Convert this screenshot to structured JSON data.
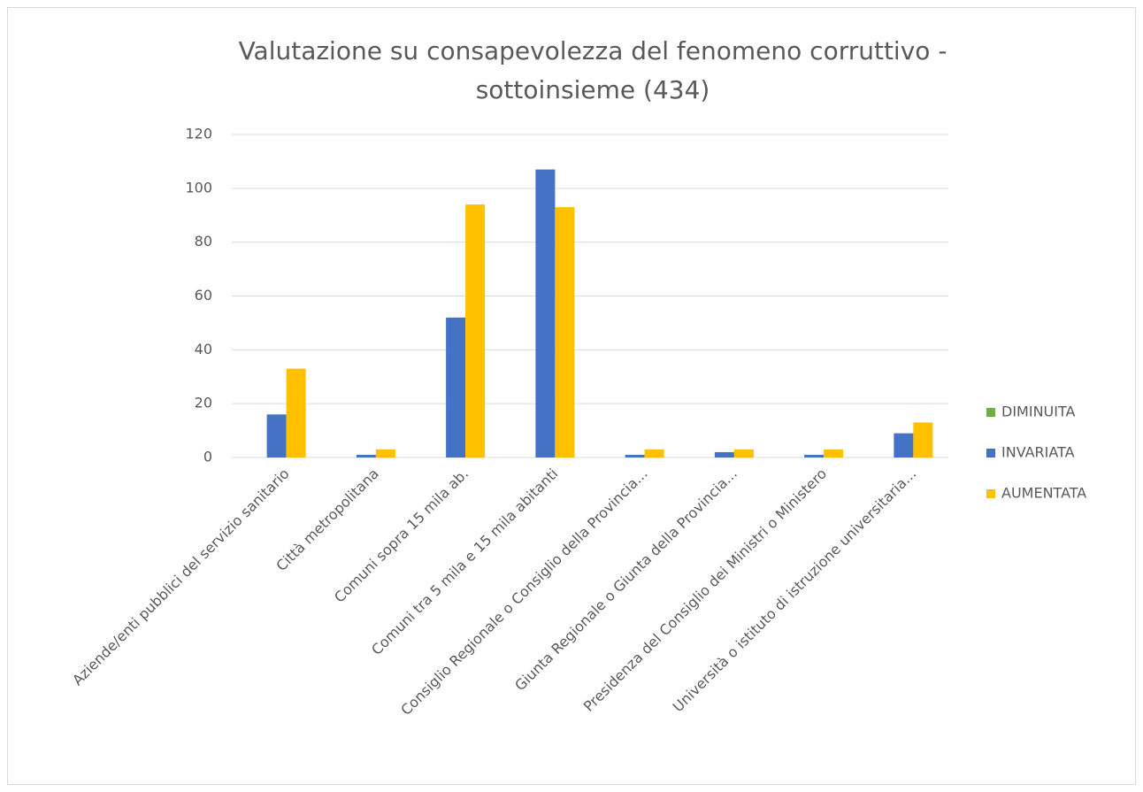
{
  "chart_data": {
    "type": "bar",
    "title": "Valutazione su consapevolezza del fenomeno corruttivo - sottoinsieme (434)",
    "categories": [
      "Aziende/enti pubblici del servizio sanitario",
      "Città metropolitana",
      "Comuni sopra 15 mila ab.",
      "Comuni tra 5 mila e 15 mila abitanti",
      "Consiglio Regionale o Consiglio della Provincia...",
      "Giunta Regionale o Giunta della Provincia...",
      "Presidenza del Consiglio dei Ministri o Ministero",
      "Università o istituto di istruzione universitaria..."
    ],
    "series": [
      {
        "name": "DIMINUITA",
        "color": "#70ad47",
        "values": [
          0,
          0,
          0,
          0,
          0,
          0,
          0,
          0
        ]
      },
      {
        "name": "INVARIATA",
        "color": "#4472c4",
        "values": [
          16,
          1,
          52,
          107,
          1,
          2,
          1,
          9
        ]
      },
      {
        "name": "AUMENTATA",
        "color": "#ffc000",
        "values": [
          33,
          3,
          94,
          93,
          3,
          3,
          3,
          13
        ]
      }
    ],
    "ylim": [
      0,
      120
    ],
    "yticks": [
      0,
      20,
      40,
      60,
      80,
      100,
      120
    ],
    "grid": true,
    "legend": "right"
  }
}
